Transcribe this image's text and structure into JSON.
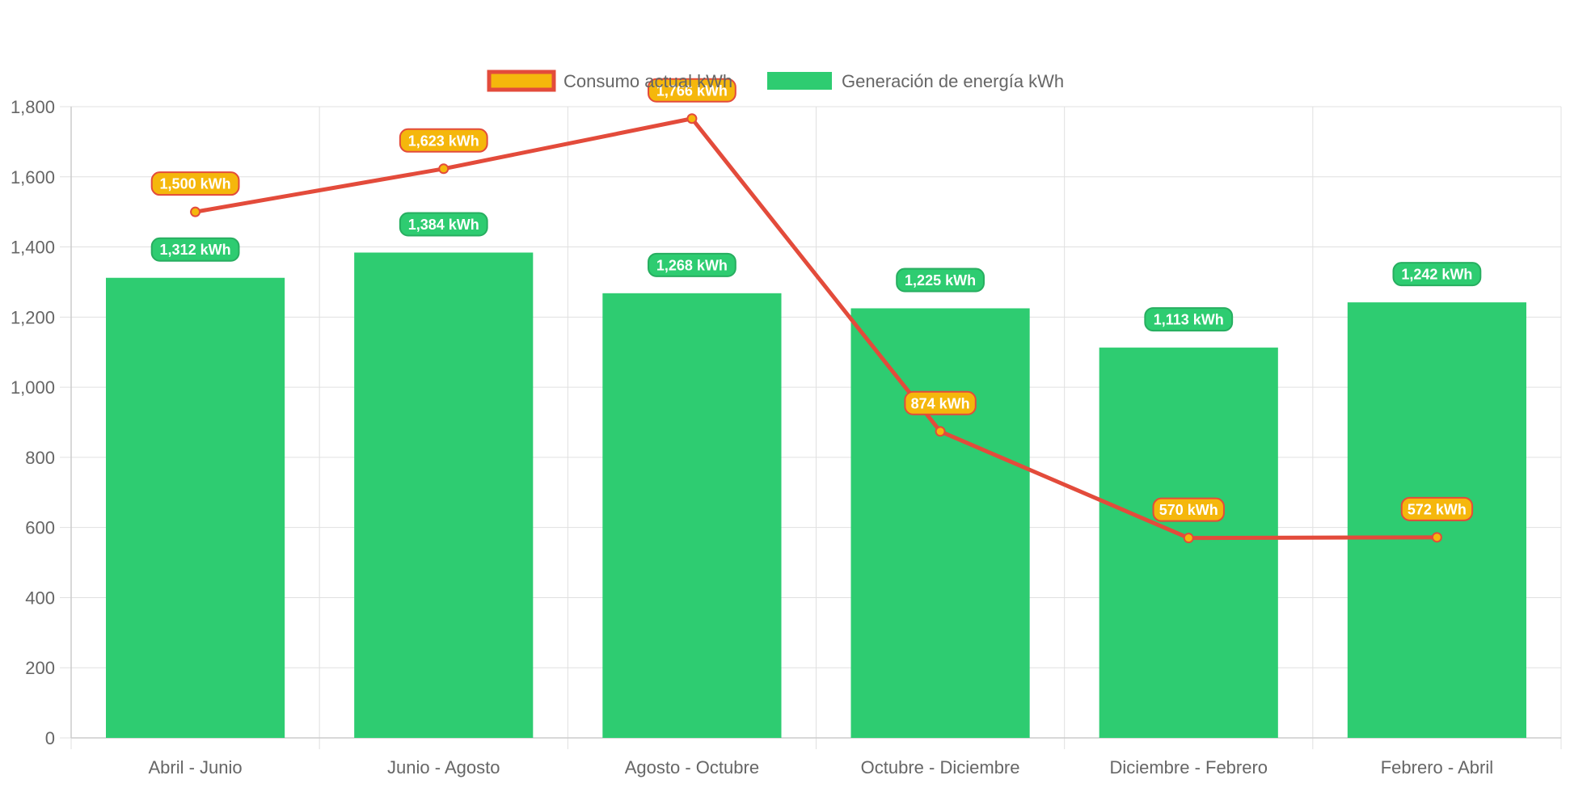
{
  "chart_data": {
    "type": "bar",
    "categories": [
      "Abril - Junio",
      "Junio - Agosto",
      "Agosto - Octubre",
      "Octubre - Diciembre",
      "Diciembre - Febrero",
      "Febrero - Abril"
    ],
    "series": [
      {
        "name": "Consumo actual kWh",
        "type": "line",
        "values": [
          1500,
          1623,
          1766,
          874,
          570,
          572
        ],
        "labels": [
          "1,500 kWh",
          "1,623 kWh",
          "1,766 kWh",
          "874 kWh",
          "570 kWh",
          "572 kWh"
        ],
        "line_color": "#e34b3b",
        "point_color": "#f5b70c"
      },
      {
        "name": "Generación de energía kWh",
        "type": "bar",
        "values": [
          1312,
          1384,
          1268,
          1225,
          1113,
          1242
        ],
        "labels": [
          "1,312 kWh",
          "1,384 kWh",
          "1,268 kWh",
          "1,225 kWh",
          "1,113 kWh",
          "1,242 kWh"
        ],
        "color": "#2ecc71"
      }
    ],
    "ylim": [
      0,
      1800
    ],
    "yticks": [
      0,
      200,
      400,
      600,
      800,
      1000,
      1200,
      1400,
      1600,
      1800
    ],
    "ytick_labels": [
      "0",
      "200",
      "400",
      "600",
      "800",
      "1,000",
      "1,200",
      "1,400",
      "1,600",
      "1,800"
    ],
    "grid": true,
    "legend_position": "top",
    "colors": {
      "grid": "#e0e0e0",
      "axis_text": "#666666",
      "label_text": "#ffffff"
    }
  }
}
